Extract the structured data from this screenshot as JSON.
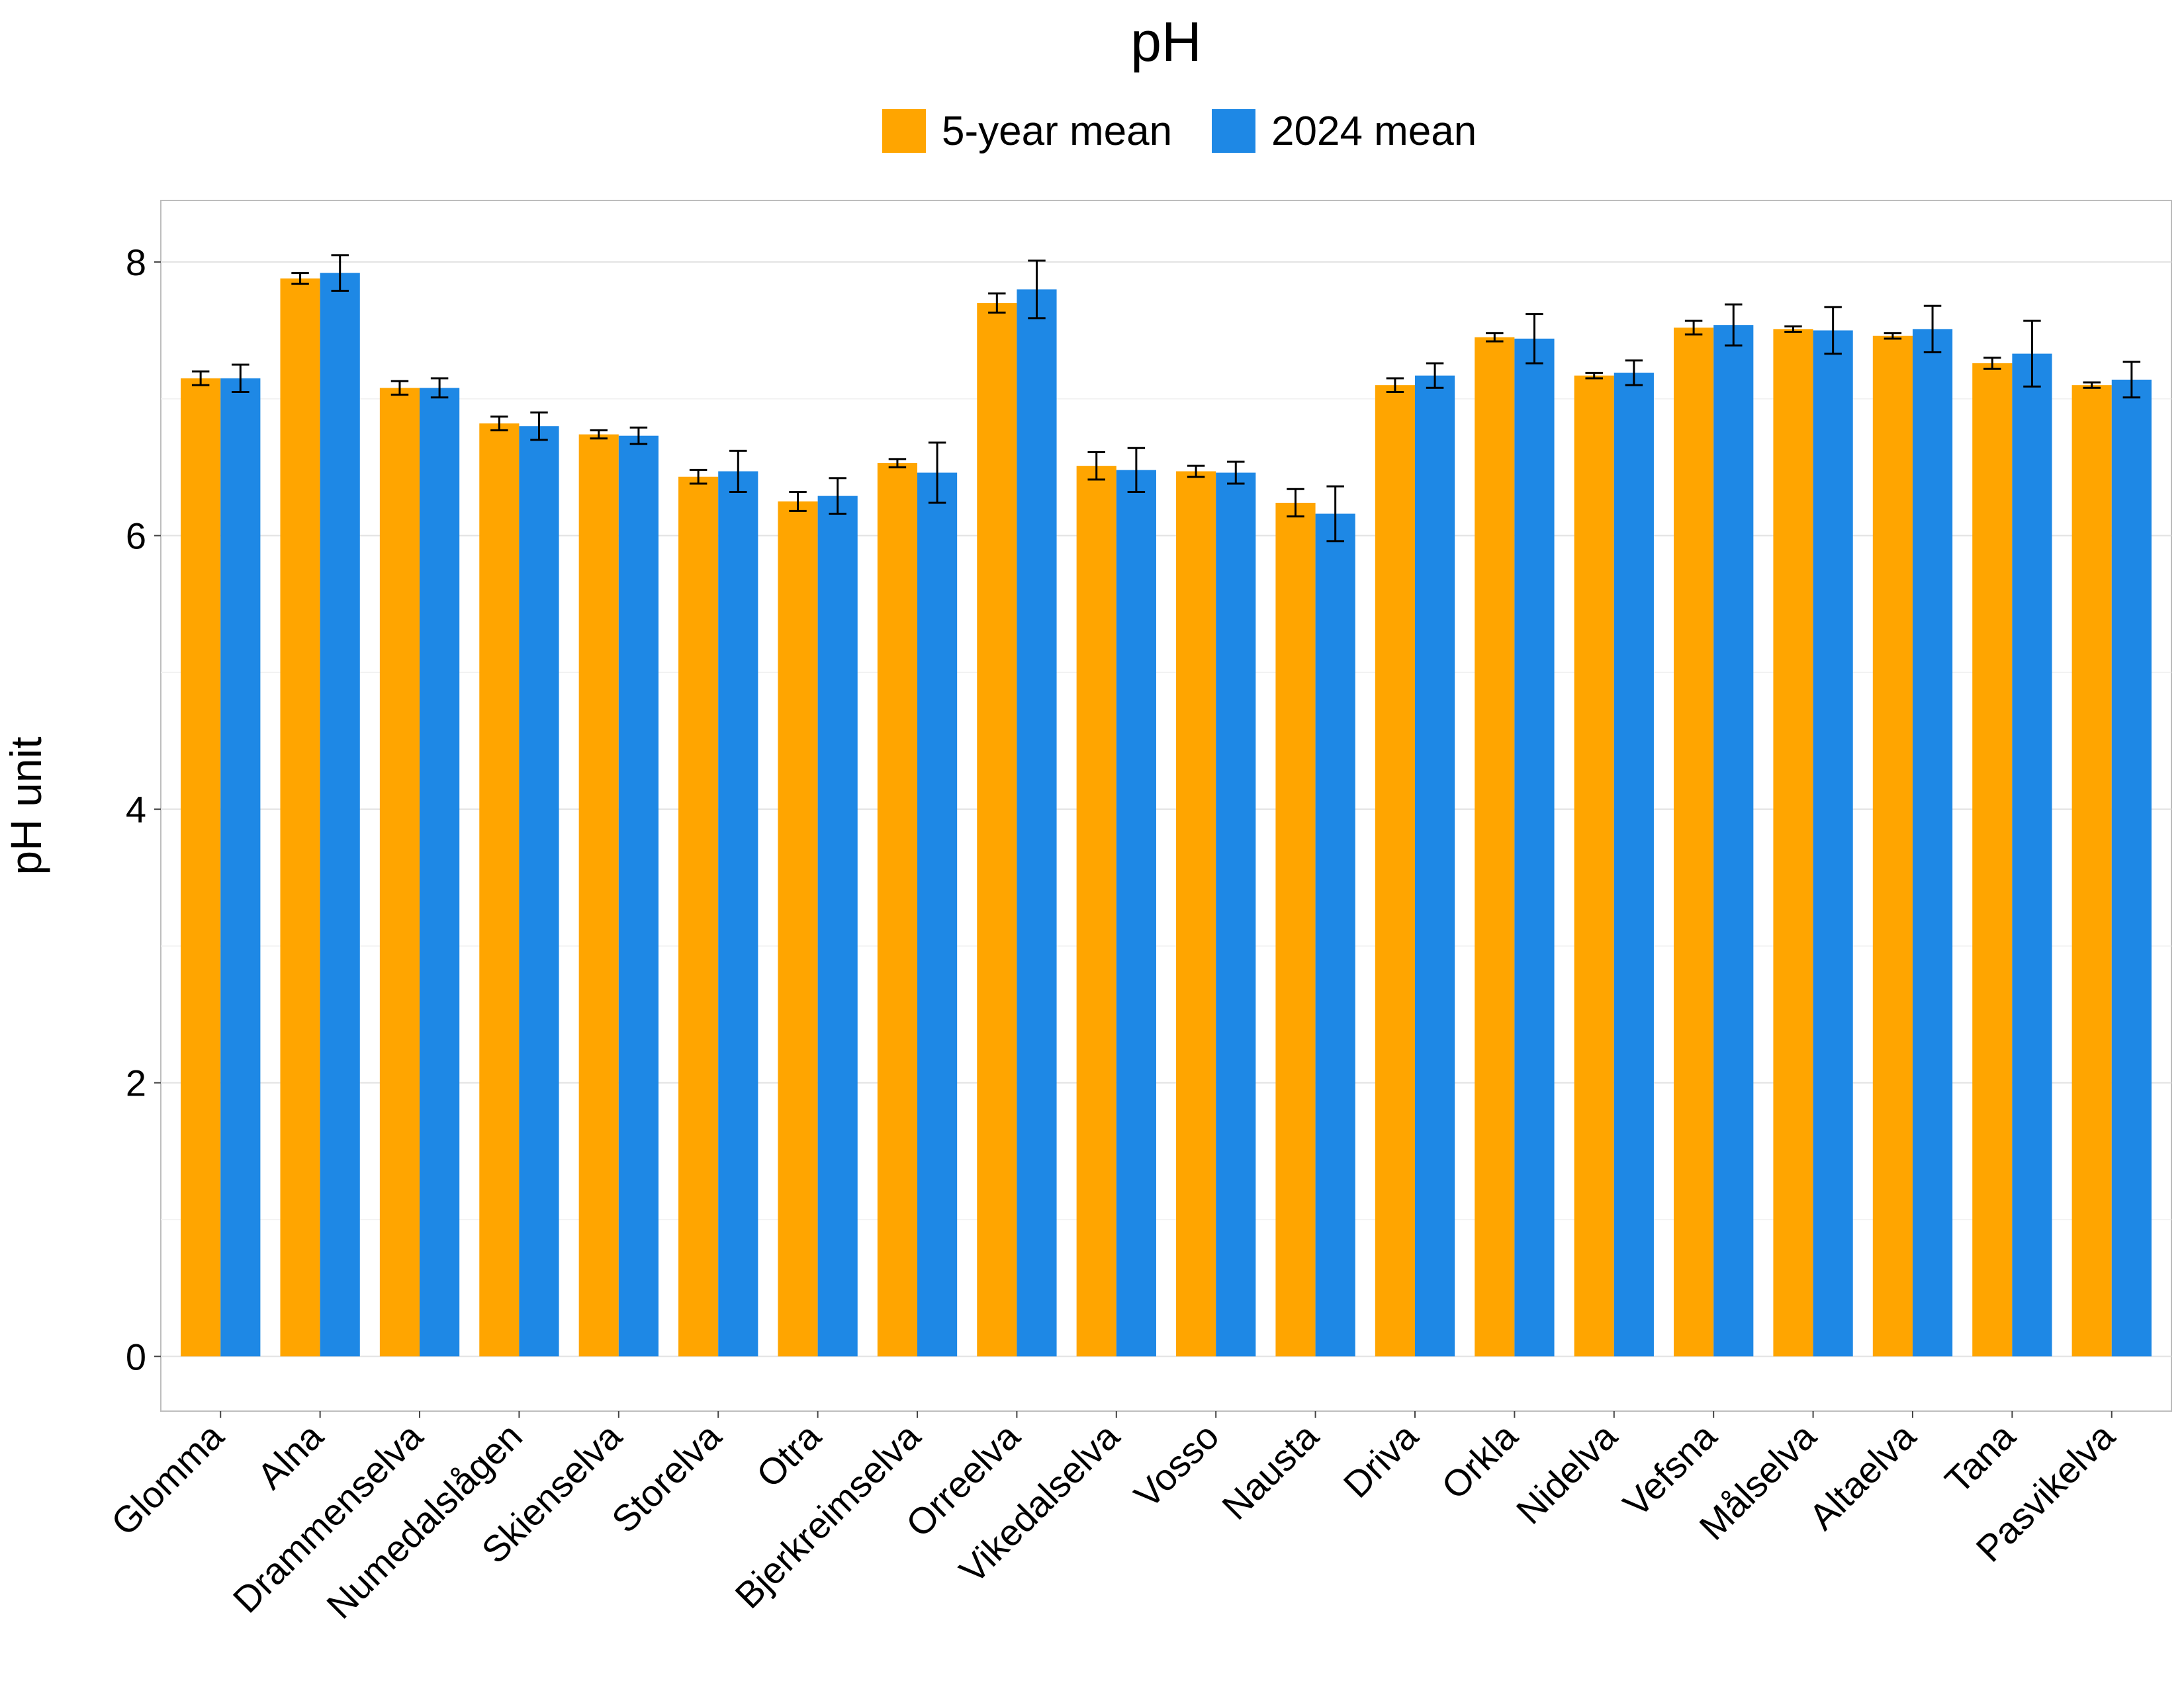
{
  "chart_data": {
    "type": "bar",
    "title": "pH",
    "xlabel": "",
    "ylabel": "pH unit",
    "ylim": [
      -0.4,
      8.45
    ],
    "yticks": [
      0,
      2,
      4,
      6,
      8
    ],
    "grid": true,
    "legend_position": "top",
    "categories": [
      "Glomma",
      "Alna",
      "Drammenselva",
      "Numedalslågen",
      "Skienselva",
      "Storelva",
      "Otra",
      "Bjerkreimselva",
      "Orreelva",
      "Vikedalselva",
      "Vosso",
      "Nausta",
      "Driva",
      "Orkla",
      "Nidelva",
      "Vefsna",
      "Målselva",
      "Altaelva",
      "Tana",
      "Pasvikelva"
    ],
    "series": [
      {
        "name": "5-year mean",
        "color": "#FFA500",
        "values": [
          7.15,
          7.88,
          7.08,
          6.82,
          6.74,
          6.43,
          6.25,
          6.53,
          7.7,
          6.51,
          6.47,
          6.24,
          7.1,
          7.45,
          7.17,
          7.52,
          7.51,
          7.46,
          7.26,
          7.1
        ],
        "error": [
          0.05,
          0.04,
          0.05,
          0.05,
          0.03,
          0.05,
          0.07,
          0.03,
          0.07,
          0.1,
          0.04,
          0.1,
          0.05,
          0.03,
          0.02,
          0.05,
          0.02,
          0.02,
          0.04,
          0.02
        ]
      },
      {
        "name": "2024 mean",
        "color": "#1E88E5",
        "values": [
          7.15,
          7.92,
          7.08,
          6.8,
          6.73,
          6.47,
          6.29,
          6.46,
          7.8,
          6.48,
          6.46,
          6.16,
          7.17,
          7.44,
          7.19,
          7.54,
          7.5,
          7.51,
          7.33,
          7.14
        ],
        "error": [
          0.1,
          0.13,
          0.07,
          0.1,
          0.06,
          0.15,
          0.13,
          0.22,
          0.21,
          0.16,
          0.08,
          0.2,
          0.09,
          0.18,
          0.09,
          0.15,
          0.17,
          0.17,
          0.24,
          0.13
        ]
      }
    ]
  }
}
